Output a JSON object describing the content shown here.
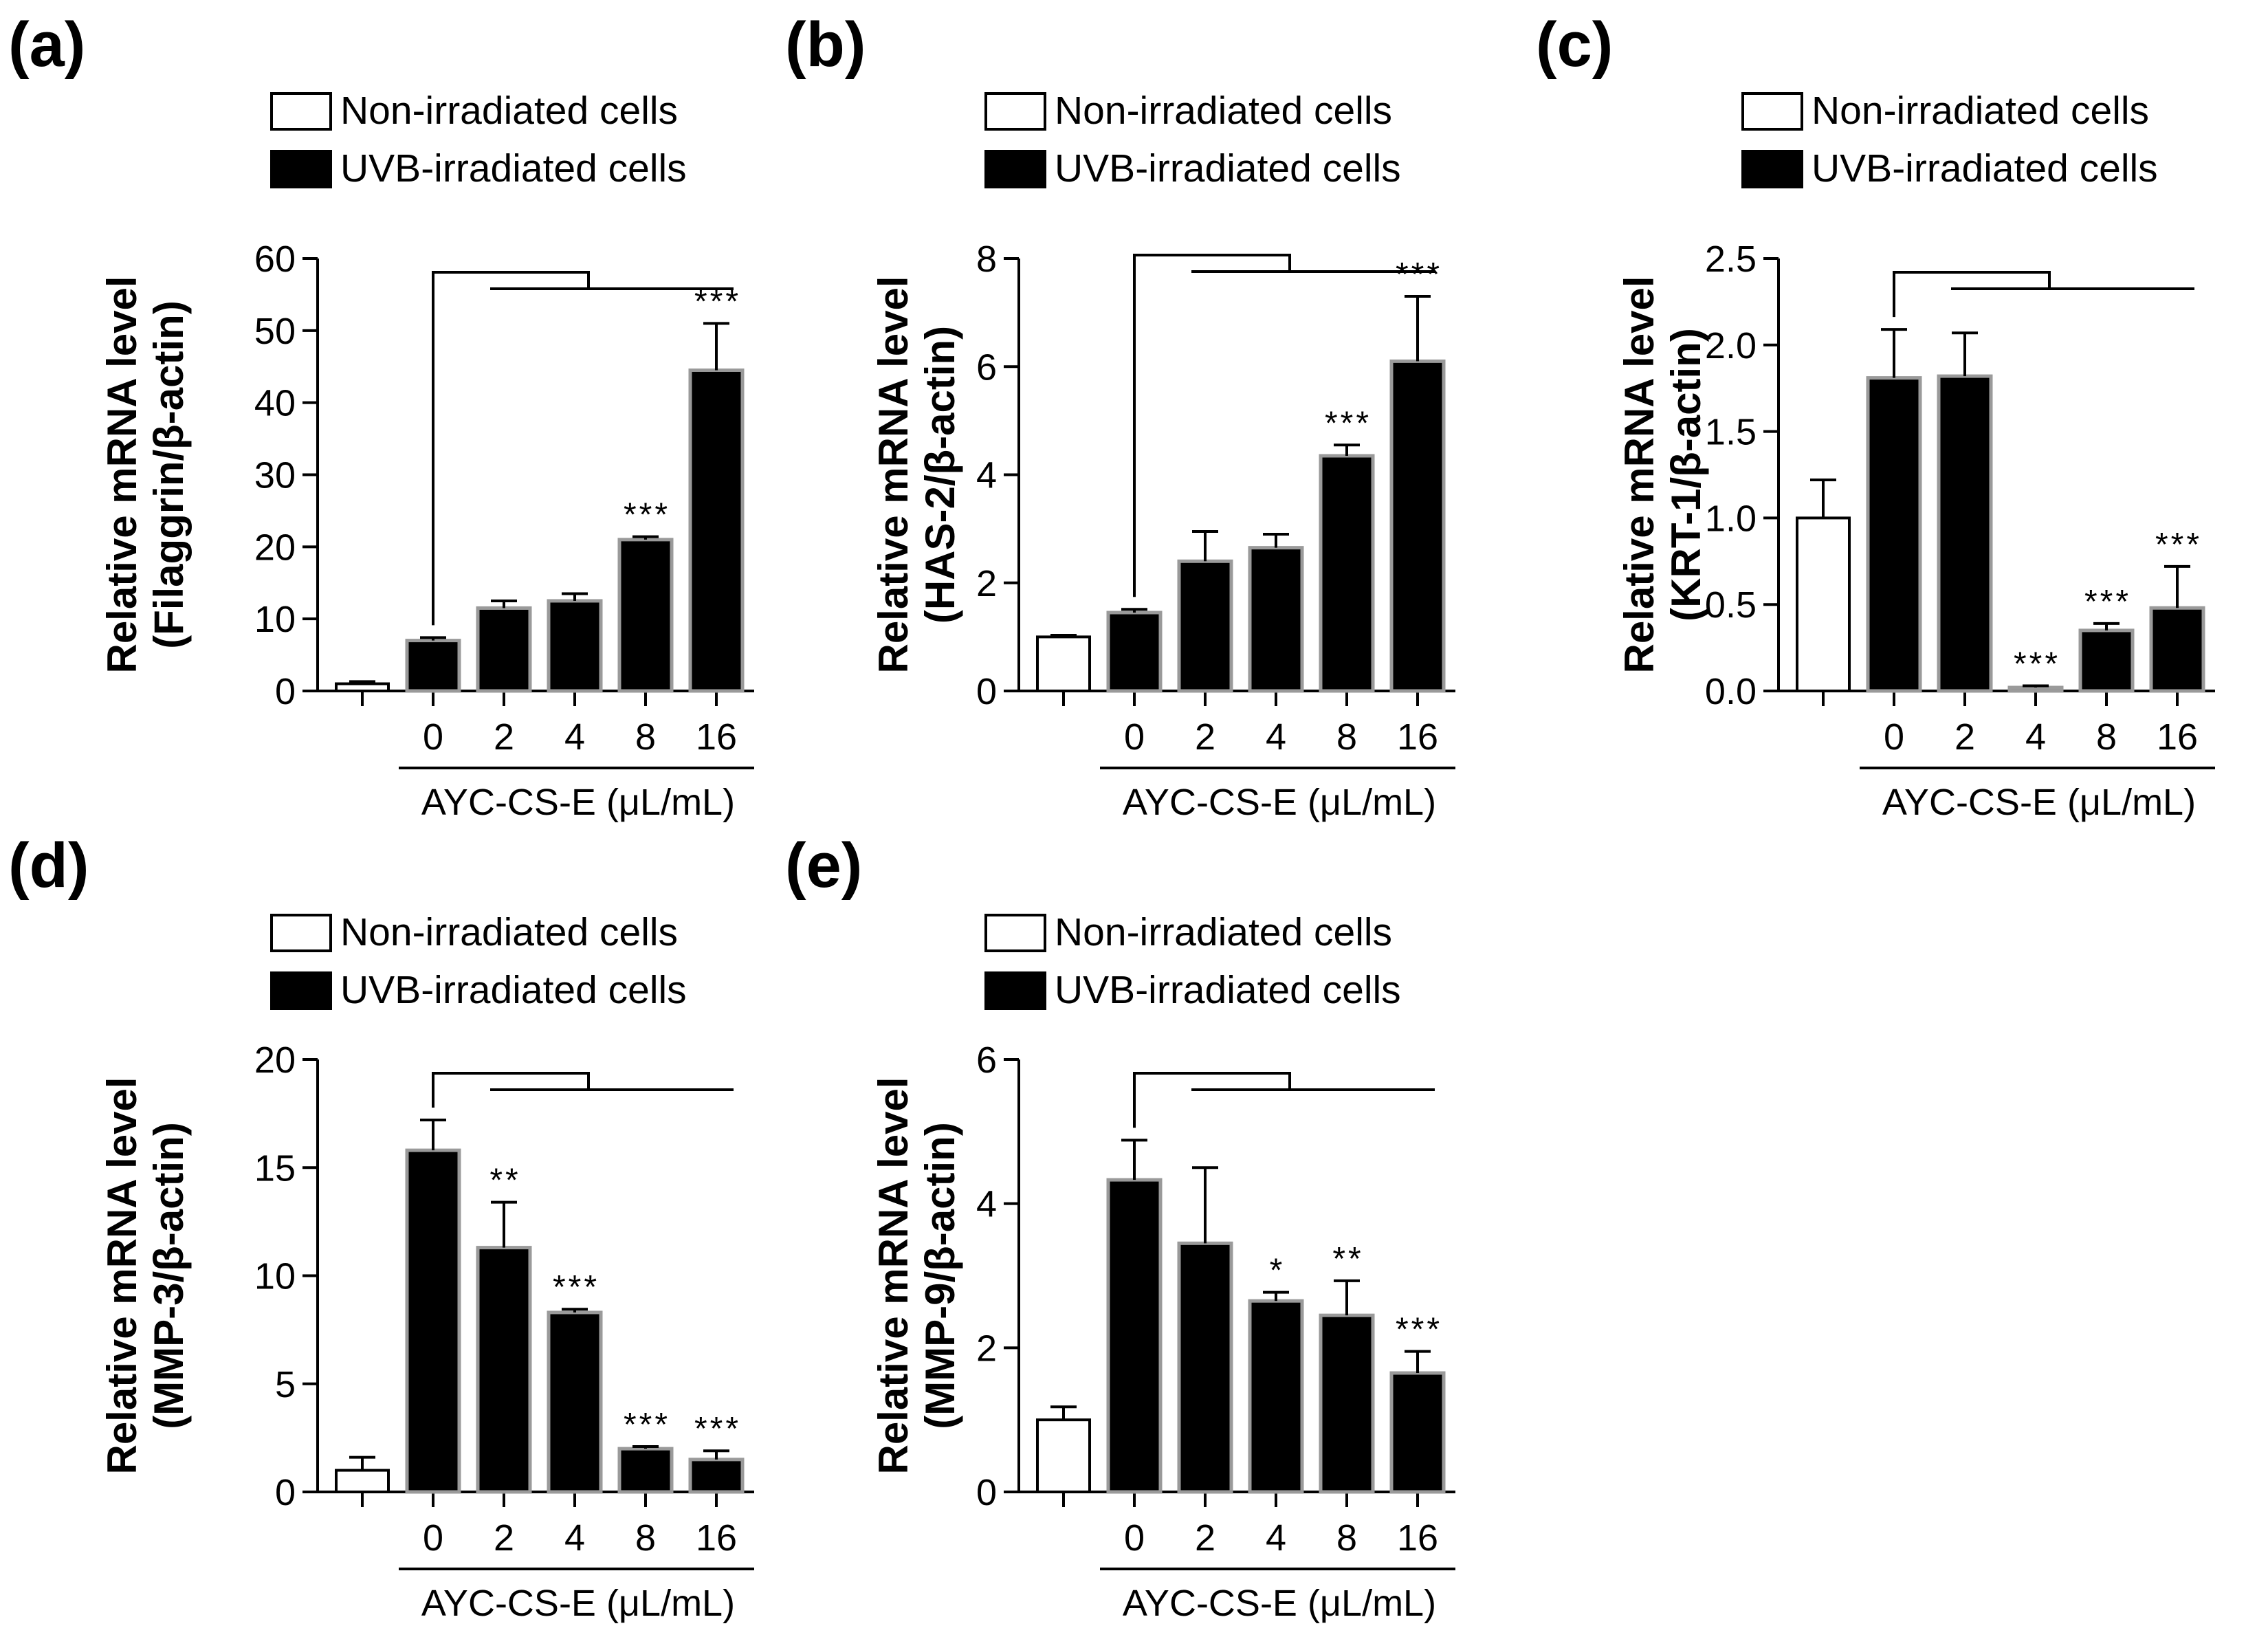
{
  "chart_data": [
    {
      "panel": "(a)",
      "type": "bar",
      "title": "",
      "ylabel_line1": "Relative mRNA level",
      "ylabel_line2": "(Filaggrin/β-actin)",
      "xlabel": "AYC-CS-E (μL/mL)",
      "ylim": [
        0,
        60
      ],
      "yticks": [
        "0",
        "10",
        "20",
        "30",
        "40",
        "50",
        "60"
      ],
      "categories": [
        "",
        "0",
        "2",
        "4",
        "8",
        "16"
      ],
      "legend": [
        "Non-irradiated cells",
        "UVB-irradiated cells"
      ],
      "series": [
        {
          "name": "Non-irradiated cells",
          "values": [
            1,
            null,
            null,
            null,
            null,
            null
          ]
        },
        {
          "name": "UVB-irradiated cells",
          "values": [
            null,
            7,
            11.5,
            12.5,
            21,
            44.5
          ]
        }
      ],
      "errors": [
        0.3,
        0.4,
        1.0,
        1.0,
        0.4,
        6.5
      ],
      "significance": [
        "",
        "",
        "",
        "",
        "***",
        "***"
      ]
    },
    {
      "panel": "(b)",
      "type": "bar",
      "title": "",
      "ylabel_line1": "Relative mRNA level",
      "ylabel_line2": "(HAS-2/β-actin)",
      "xlabel": "AYC-CS-E (μL/mL)",
      "ylim": [
        0,
        8
      ],
      "yticks": [
        "0",
        "2",
        "4",
        "6",
        "8"
      ],
      "categories": [
        "",
        "0",
        "2",
        "4",
        "8",
        "16"
      ],
      "legend": [
        "Non-irradiated cells",
        "UVB-irradiated cells"
      ],
      "series": [
        {
          "name": "Non-irradiated cells",
          "values": [
            1,
            null,
            null,
            null,
            null,
            null
          ]
        },
        {
          "name": "UVB-irradiated cells",
          "values": [
            null,
            1.45,
            2.4,
            2.65,
            4.35,
            6.1
          ]
        }
      ],
      "errors": [
        0.03,
        0.06,
        0.55,
        0.25,
        0.2,
        1.2
      ],
      "significance": [
        "",
        "",
        "",
        "",
        "***",
        "***"
      ]
    },
    {
      "panel": "(c)",
      "type": "bar",
      "title": "",
      "ylabel_line1": "Relative mRNA level",
      "ylabel_line2": "(KRT-1/β-actin)",
      "xlabel": "AYC-CS-E (μL/mL)",
      "ylim": [
        0,
        2.5
      ],
      "yticks": [
        "0.0",
        "0.5",
        "1.0",
        "1.5",
        "2.0",
        "2.5"
      ],
      "categories": [
        "",
        "0",
        "2",
        "4",
        "8",
        "16"
      ],
      "legend": [
        "Non-irradiated cells",
        "UVB-irradiated cells"
      ],
      "series": [
        {
          "name": "Non-irradiated cells",
          "values": [
            1.0,
            null,
            null,
            null,
            null,
            null
          ]
        },
        {
          "name": "UVB-irradiated cells",
          "values": [
            null,
            1.81,
            1.82,
            0.02,
            0.35,
            0.48
          ]
        }
      ],
      "errors": [
        0.22,
        0.28,
        0.25,
        0.01,
        0.04,
        0.24
      ],
      "significance": [
        "",
        "",
        "",
        "***",
        "***",
        "***"
      ]
    },
    {
      "panel": "(d)",
      "type": "bar",
      "title": "",
      "ylabel_line1": "Relative mRNA level",
      "ylabel_line2": "(MMP-3/β-actin)",
      "xlabel": "AYC-CS-E (μL/mL)",
      "ylim": [
        0,
        20
      ],
      "yticks": [
        "0",
        "5",
        "10",
        "15",
        "20"
      ],
      "categories": [
        "",
        "0",
        "2",
        "4",
        "8",
        "16"
      ],
      "legend": [
        "Non-irradiated cells",
        "UVB-irradiated cells"
      ],
      "series": [
        {
          "name": "Non-irradiated cells",
          "values": [
            1,
            null,
            null,
            null,
            null,
            null
          ]
        },
        {
          "name": "UVB-irradiated cells",
          "values": [
            null,
            15.8,
            11.3,
            8.3,
            2.0,
            1.5
          ]
        }
      ],
      "errors": [
        0.6,
        1.4,
        2.1,
        0.15,
        0.1,
        0.4
      ],
      "significance": [
        "",
        "",
        "**",
        "***",
        "***",
        "***"
      ]
    },
    {
      "panel": "(e)",
      "type": "bar",
      "title": "",
      "ylabel_line1": "Relative mRNA level",
      "ylabel_line2": "(MMP-9/β-actin)",
      "xlabel": "AYC-CS-E (μL/mL)",
      "ylim": [
        0,
        6
      ],
      "yticks": [
        "0",
        "2",
        "4",
        "6"
      ],
      "categories": [
        "",
        "0",
        "2",
        "4",
        "8",
        "16"
      ],
      "legend": [
        "Non-irradiated cells",
        "UVB-irradiated cells"
      ],
      "series": [
        {
          "name": "Non-irradiated cells",
          "values": [
            1,
            null,
            null,
            null,
            null,
            null
          ]
        },
        {
          "name": "UVB-irradiated cells",
          "values": [
            null,
            4.33,
            3.45,
            2.65,
            2.45,
            1.65
          ]
        }
      ],
      "errors": [
        0.18,
        0.55,
        1.05,
        0.12,
        0.48,
        0.3
      ],
      "significance": [
        "",
        "",
        "",
        "*",
        "**",
        "***"
      ]
    }
  ]
}
